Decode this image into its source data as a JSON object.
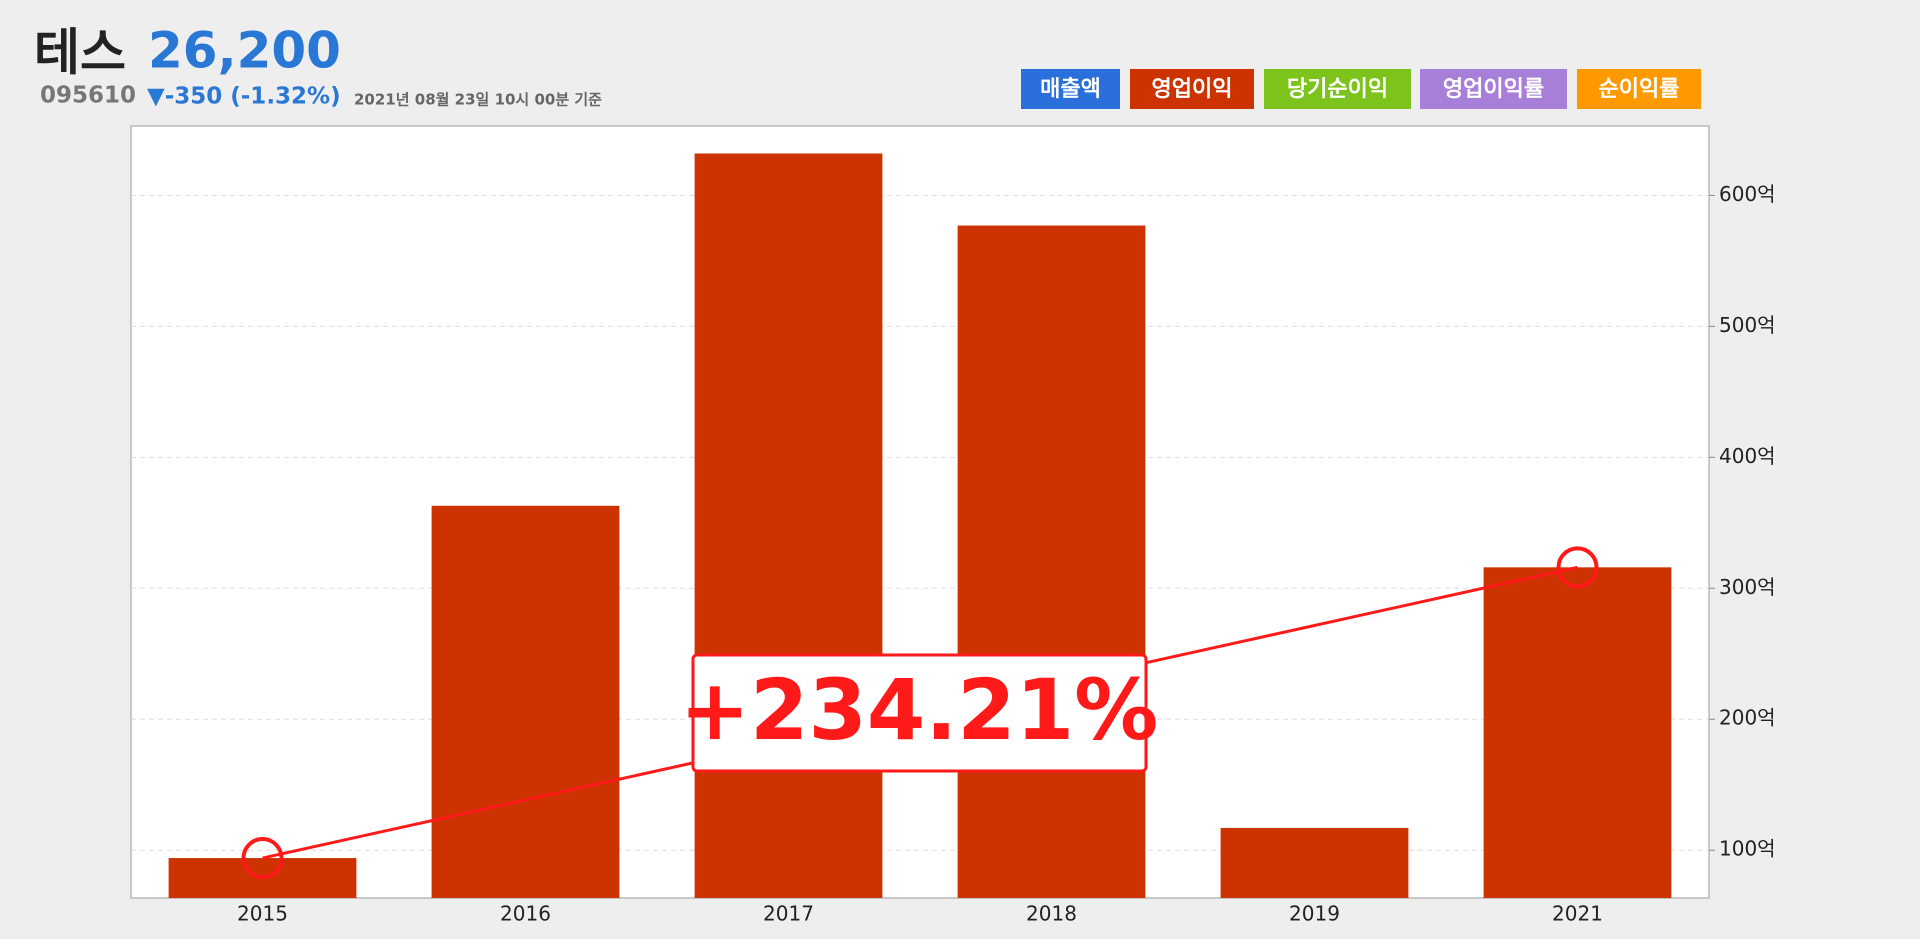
{
  "header": {
    "name": "테스",
    "price": "26,200",
    "code": "095610",
    "change": "▼-350 (-1.32%)",
    "timestamp": "2021년 08월 23일 10시 00분 기준"
  },
  "buttons": [
    {
      "label": "매출액",
      "color": "#2a6fdb"
    },
    {
      "label": "영업이익",
      "color": "#cc3300"
    },
    {
      "label": "당기순이익",
      "color": "#7cc41c"
    },
    {
      "label": "영업이익률",
      "color": "#a77fd9"
    },
    {
      "label": "순이익률",
      "color": "#ff9900"
    }
  ],
  "chart_data": {
    "type": "bar",
    "categories": [
      "2015",
      "2016",
      "2017",
      "2018",
      "2019",
      "2021"
    ],
    "values": [
      94,
      363,
      632,
      577,
      117,
      316
    ],
    "color": "#cc3300",
    "ylim": [
      63.5,
      653
    ],
    "yticks": [
      {
        "value": 100,
        "label": "100억"
      },
      {
        "value": 200,
        "label": "200억"
      },
      {
        "value": 300,
        "label": "300억"
      },
      {
        "value": 400,
        "label": "400억"
      },
      {
        "value": 500,
        "label": "500억"
      },
      {
        "value": 600,
        "label": "600억"
      }
    ],
    "grid": true,
    "trend_color": "#ff1a1a",
    "annotation": "+234.21%"
  }
}
